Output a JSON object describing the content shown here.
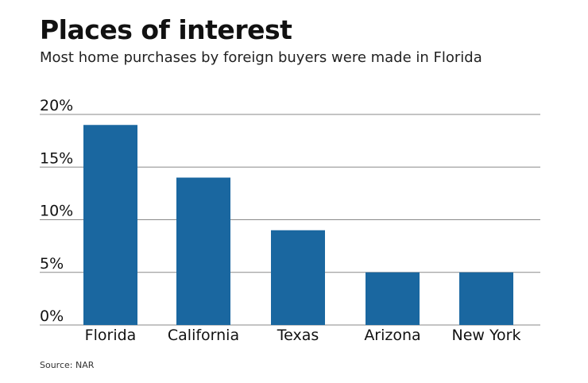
{
  "title": "Places of interest",
  "subtitle": "Most home purchases by foreign buyers were made in Florida",
  "source": "Source: NAR",
  "chart_data": {
    "type": "bar",
    "title": "Places of interest",
    "subtitle": "Most home purchases by foreign buyers were made in Florida",
    "categories": [
      "Florida",
      "California",
      "Texas",
      "Arizona",
      "New York"
    ],
    "values": [
      19,
      14,
      9,
      5,
      5
    ],
    "unit": "%",
    "ylim": [
      0,
      20
    ],
    "yticks": [
      0,
      5,
      10,
      15,
      20
    ],
    "ytick_labels": [
      "0%",
      "5%",
      "10%",
      "15%",
      "20%"
    ],
    "xlabel": "",
    "ylabel": "",
    "grid": true,
    "bar_color": "#1a67a0",
    "grid_color": "#8a8a8a"
  }
}
